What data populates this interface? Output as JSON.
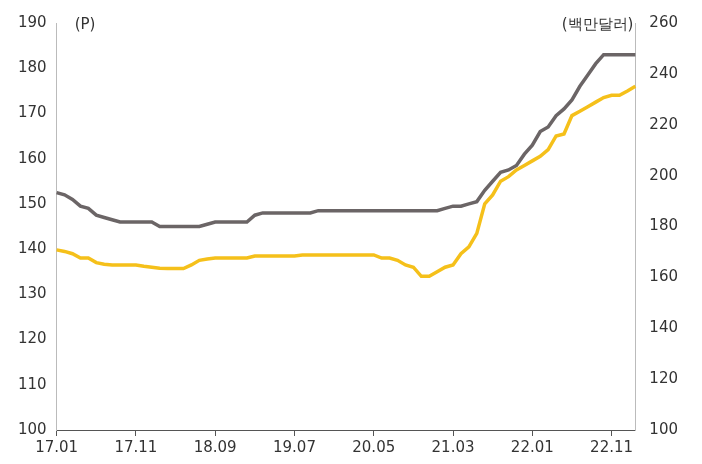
{
  "chart_data": {
    "type": "line",
    "y_label": "(P)",
    "y2_label": "(백만달러)",
    "categories": [
      "17.01",
      null,
      null,
      null,
      null,
      null,
      null,
      null,
      null,
      null,
      "17.11",
      null,
      null,
      null,
      null,
      null,
      null,
      null,
      null,
      null,
      "18.09",
      null,
      null,
      null,
      null,
      null,
      null,
      null,
      null,
      null,
      "19.07",
      null,
      null,
      null,
      null,
      null,
      null,
      null,
      null,
      null,
      "20.05",
      null,
      null,
      null,
      null,
      null,
      null,
      null,
      null,
      null,
      "21.03",
      null,
      null,
      null,
      null,
      null,
      null,
      null,
      null,
      null,
      "22.01",
      null,
      null,
      null,
      null,
      null,
      null,
      null,
      null,
      null,
      "22.11",
      null,
      null,
      null
    ],
    "series": [
      {
        "color": "#6b6566",
        "axis": "y",
        "values": [
          152.5,
          152,
          151,
          149.5,
          149,
          147.5,
          147,
          146.5,
          146,
          146,
          146,
          146,
          146,
          145,
          145,
          145,
          145,
          145,
          145,
          145.5,
          146,
          146,
          146,
          146,
          146,
          147.5,
          148,
          148,
          148,
          148,
          148,
          148,
          148,
          148.5,
          148.5,
          148.5,
          148.5,
          148.5,
          148.5,
          148.5,
          148.5,
          148.5,
          148.5,
          148.5,
          148.5,
          148.5,
          148.5,
          148.5,
          148.5,
          149,
          149.5,
          149.5,
          150,
          150.5,
          153,
          155,
          157,
          157.5,
          158.5,
          161,
          163,
          166,
          167,
          169.5,
          171,
          173,
          176,
          178.5,
          181,
          183,
          183,
          183,
          183,
          183
        ]
      },
      {
        "color": "#f5c01a",
        "axis": "y2",
        "values": [
          170.8,
          170.2,
          169.3,
          167.6,
          167.6,
          165.8,
          165.2,
          164.9,
          164.9,
          164.9,
          164.9,
          164.4,
          164,
          163.6,
          163.5,
          163.5,
          163.5,
          164.9,
          166.7,
          167.2,
          167.6,
          167.6,
          167.6,
          167.6,
          167.6,
          168.4,
          168.4,
          168.4,
          168.4,
          168.4,
          168.4,
          168.8,
          168.8,
          168.8,
          168.8,
          168.8,
          168.8,
          168.8,
          168.8,
          168.8,
          168.8,
          167.6,
          167.6,
          166.7,
          164.9,
          164,
          160.4,
          160.4,
          162.2,
          164,
          164.9,
          169.3,
          172,
          177.3,
          188.9,
          192.4,
          197.8,
          199.6,
          202.2,
          204,
          205.8,
          207.6,
          210.2,
          215.6,
          216.4,
          223.6,
          225.3,
          227.1,
          228.9,
          230.7,
          231.6,
          231.6,
          233.3,
          235.1
        ]
      }
    ],
    "ylim": [
      100,
      190
    ],
    "yticks": [
      100,
      110,
      120,
      130,
      140,
      150,
      160,
      170,
      180,
      190
    ],
    "y2lim": [
      100,
      260
    ],
    "y2ticks": [
      100,
      120,
      140,
      160,
      180,
      200,
      220,
      240,
      260
    ],
    "grid": false
  }
}
